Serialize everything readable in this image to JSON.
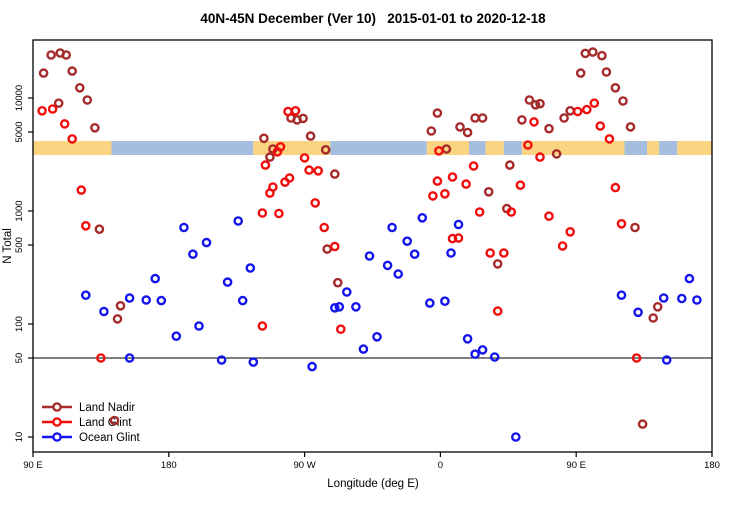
{
  "title": "40N-45N December (Ver 10)   2015-01-01 to 2020-12-18",
  "y_axis": {
    "label": "N Total",
    "scale": "log",
    "ticks": [
      {
        "label": "10000",
        "value": 10000
      },
      {
        "label": "5000",
        "value": 5000
      },
      {
        "label": "1000",
        "value": 1000
      },
      {
        "label": "500",
        "value": 500
      },
      {
        "label": "100",
        "value": 100
      },
      {
        "label": "50",
        "value": 50
      },
      {
        "label": "10",
        "value": 10
      }
    ]
  },
  "x_axis": {
    "label": "Longitude (deg E)",
    "ticks": [
      {
        "label": "90 E",
        "deg": 0
      },
      {
        "label": "180",
        "deg": 90
      },
      {
        "label": "90 W",
        "deg": 180
      },
      {
        "label": "0",
        "deg": 270
      },
      {
        "label": "90 E",
        "deg": 360
      },
      {
        "label": "180",
        "deg": 450
      }
    ]
  },
  "reference_line": {
    "value": 50
  },
  "colors": {
    "land_nadir": "#A52A2A",
    "land_glint": "#F20D0D",
    "ocean_glint": "#1414EE",
    "strip_land": "#FAD480",
    "strip_ocean": "#A6BEDD"
  },
  "map_strip": {
    "land_color": "#FAD480",
    "ocean_color": "#A6BEDD",
    "segments": [
      {
        "from_deg": 0,
        "to_deg": 52,
        "surface": "land"
      },
      {
        "from_deg": 52,
        "to_deg": 146,
        "surface": "ocean"
      },
      {
        "from_deg": 146,
        "to_deg": 197,
        "surface": "land"
      },
      {
        "from_deg": 197,
        "to_deg": 261,
        "surface": "ocean"
      },
      {
        "from_deg": 261,
        "to_deg": 289,
        "surface": "land"
      },
      {
        "from_deg": 289,
        "to_deg": 300,
        "surface": "ocean"
      },
      {
        "from_deg": 300,
        "to_deg": 312,
        "surface": "land"
      },
      {
        "from_deg": 312,
        "to_deg": 324,
        "surface": "ocean"
      },
      {
        "from_deg": 324,
        "to_deg": 392,
        "surface": "land"
      },
      {
        "from_deg": 392,
        "to_deg": 407,
        "surface": "ocean"
      },
      {
        "from_deg": 407,
        "to_deg": 415,
        "surface": "land"
      },
      {
        "from_deg": 415,
        "to_deg": 427,
        "surface": "ocean"
      },
      {
        "from_deg": 427,
        "to_deg": 450,
        "surface": "land"
      }
    ]
  },
  "legend": {
    "items": [
      {
        "label": "Land Nadir",
        "series": "land_nadir"
      },
      {
        "label": "Land Glint",
        "series": "land_glint"
      },
      {
        "label": "Ocean Glint",
        "series": "ocean_glint"
      }
    ]
  },
  "chart_data": {
    "type": "scatter",
    "title": "40N-45N December (Ver 10)   2015-01-01 to 2020-12-18",
    "xlabel": "Longitude (deg E)",
    "ylabel": "N Total",
    "x_unit": "degrees eastward along axis starting at 90E (0-450)",
    "y_scale": "log",
    "ylim": [
      7.5,
      33000
    ],
    "legend_position": "bottom-left",
    "grid": false,
    "series": [
      {
        "name": "Land Nadir",
        "color_key": "land_nadir",
        "points": [
          [
            12,
            24000
          ],
          [
            18,
            25000
          ],
          [
            22,
            24000
          ],
          [
            7,
            16600
          ],
          [
            26,
            17300
          ],
          [
            31,
            12300
          ],
          [
            36,
            9600
          ],
          [
            17,
            9000
          ],
          [
            41,
            5450
          ],
          [
            44,
            690
          ],
          [
            58,
            145
          ],
          [
            56,
            111
          ],
          [
            54,
            14
          ],
          [
            153,
            4400
          ],
          [
            171,
            6650
          ],
          [
            175,
            6400
          ],
          [
            179,
            6600
          ],
          [
            184,
            4600
          ],
          [
            159,
            3540
          ],
          [
            157,
            3000
          ],
          [
            194,
            3480
          ],
          [
            200,
            2120
          ],
          [
            195,
            460
          ],
          [
            202,
            232
          ],
          [
            268,
            7350
          ],
          [
            264,
            5100
          ],
          [
            293,
            6650
          ],
          [
            298,
            6650
          ],
          [
            283,
            5550
          ],
          [
            288,
            4950
          ],
          [
            274,
            3540
          ],
          [
            302,
            1480
          ],
          [
            314,
            1050
          ],
          [
            308,
            340
          ],
          [
            324,
            6400
          ],
          [
            329,
            9600
          ],
          [
            333,
            8700
          ],
          [
            336,
            8900
          ],
          [
            342,
            5350
          ],
          [
            352,
            6650
          ],
          [
            356,
            7700
          ],
          [
            347,
            3200
          ],
          [
            316,
            2550
          ],
          [
            363,
            16600
          ],
          [
            366,
            24800
          ],
          [
            371,
            25500
          ],
          [
            377,
            23700
          ],
          [
            380,
            17000
          ],
          [
            386,
            12300
          ],
          [
            391,
            9400
          ],
          [
            396,
            5550
          ],
          [
            399,
            715
          ],
          [
            414,
            142
          ],
          [
            411,
            113
          ],
          [
            404,
            13
          ]
        ]
      },
      {
        "name": "Land Glint",
        "color_key": "land_glint",
        "points": [
          [
            6,
            7700
          ],
          [
            13,
            8000
          ],
          [
            21,
            5900
          ],
          [
            26,
            4350
          ],
          [
            32,
            1530
          ],
          [
            35,
            740
          ],
          [
            45,
            50
          ],
          [
            154,
            2550
          ],
          [
            164,
            3700
          ],
          [
            162,
            3340
          ],
          [
            169,
            7600
          ],
          [
            174,
            7700
          ],
          [
            180,
            2950
          ],
          [
            183,
            2300
          ],
          [
            189,
            2270
          ],
          [
            170,
            1960
          ],
          [
            159,
            1630
          ],
          [
            167,
            1800
          ],
          [
            157,
            1440
          ],
          [
            187,
            1180
          ],
          [
            163,
            950
          ],
          [
            152,
            960
          ],
          [
            193,
            715
          ],
          [
            200,
            485
          ],
          [
            204,
            90
          ],
          [
            152,
            96
          ],
          [
            269,
            3400
          ],
          [
            292,
            2500
          ],
          [
            278,
            2000
          ],
          [
            268,
            1840
          ],
          [
            287,
            1730
          ],
          [
            265,
            1360
          ],
          [
            273,
            1420
          ],
          [
            296,
            980
          ],
          [
            317,
            980
          ],
          [
            278,
            570
          ],
          [
            282,
            577
          ],
          [
            303,
            425
          ],
          [
            312,
            425
          ],
          [
            308,
            130
          ],
          [
            332,
            6150
          ],
          [
            361,
            7600
          ],
          [
            367,
            7900
          ],
          [
            372,
            9000
          ],
          [
            376,
            5650
          ],
          [
            382,
            4350
          ],
          [
            328,
            3840
          ],
          [
            336,
            3000
          ],
          [
            323,
            1690
          ],
          [
            342,
            900
          ],
          [
            356,
            655
          ],
          [
            390,
            770
          ],
          [
            351,
            490
          ],
          [
            400,
            50
          ],
          [
            386,
            1610
          ]
        ]
      },
      {
        "name": "Ocean Glint",
        "color_key": "ocean_glint",
        "points": [
          [
            100,
            715
          ],
          [
            115,
            525
          ],
          [
            136,
            815
          ],
          [
            238,
            715
          ],
          [
            248,
            540
          ],
          [
            258,
            870
          ],
          [
            282,
            760
          ],
          [
            106,
            415
          ],
          [
            144,
            313
          ],
          [
            81,
            252
          ],
          [
            129,
            235
          ],
          [
            35,
            180
          ],
          [
            64,
            170
          ],
          [
            75,
            163
          ],
          [
            85,
            161
          ],
          [
            139,
            161
          ],
          [
            47,
            129
          ],
          [
            95,
            78
          ],
          [
            110,
            96
          ],
          [
            64,
            50
          ],
          [
            125,
            48
          ],
          [
            146,
            46
          ],
          [
            223,
            400
          ],
          [
            253,
            415
          ],
          [
            277,
            425
          ],
          [
            235,
            330
          ],
          [
            242,
            277
          ],
          [
            208,
            192
          ],
          [
            200,
            139
          ],
          [
            203,
            142
          ],
          [
            214,
            142
          ],
          [
            263,
            153
          ],
          [
            273,
            159
          ],
          [
            228,
            77
          ],
          [
            219,
            60
          ],
          [
            288,
            74
          ],
          [
            293,
            54
          ],
          [
            298,
            59
          ],
          [
            306,
            51
          ],
          [
            185,
            42
          ],
          [
            390,
            180
          ],
          [
            418,
            170
          ],
          [
            430,
            168
          ],
          [
            440,
            163
          ],
          [
            435,
            252
          ],
          [
            401,
            127
          ],
          [
            420,
            48
          ],
          [
            320,
            10
          ]
        ]
      }
    ]
  }
}
